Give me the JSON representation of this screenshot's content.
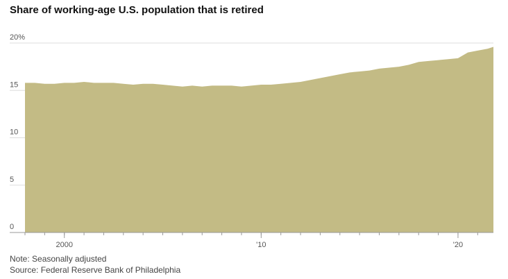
{
  "title": "Share of working-age U.S. population that is retired",
  "note": "Note: Seasonally adjusted",
  "source": "Source: Federal Reserve Bank of Philadelphia",
  "colors": {
    "area": "#c3bb85",
    "grid": "#dddddd",
    "axis": "#999999",
    "text": "#555555"
  },
  "chart_data": {
    "type": "area",
    "title": "Share of working-age U.S. population that is retired",
    "xlabel": "",
    "ylabel": "",
    "ylim": [
      0,
      20
    ],
    "yticks": [
      {
        "value": 20,
        "label": "20%"
      },
      {
        "value": 15,
        "label": "15"
      },
      {
        "value": 10,
        "label": "10"
      },
      {
        "value": 5,
        "label": "5"
      },
      {
        "value": 0,
        "label": "0"
      }
    ],
    "xlim": [
      1998.0,
      2021.8
    ],
    "xticks": [
      {
        "value": 2000,
        "label": "2000"
      },
      {
        "value": 2010,
        "label": "'10"
      },
      {
        "value": 2020,
        "label": "'20"
      }
    ],
    "grid": true,
    "series": [
      {
        "x": [
          1998.0,
          1998.5,
          1999.0,
          1999.5,
          2000.0,
          2000.5,
          2001.0,
          2001.5,
          2002.0,
          2002.5,
          2003.0,
          2003.5,
          2004.0,
          2004.5,
          2005.0,
          2005.5,
          2006.0,
          2006.5,
          2007.0,
          2007.5,
          2008.0,
          2008.5,
          2009.0,
          2009.5,
          2010.0,
          2010.5,
          2011.0,
          2011.5,
          2012.0,
          2012.5,
          2013.0,
          2013.5,
          2014.0,
          2014.5,
          2015.0,
          2015.5,
          2016.0,
          2016.5,
          2017.0,
          2017.5,
          2018.0,
          2018.5,
          2019.0,
          2019.5,
          2020.0,
          2020.5,
          2021.0,
          2021.5,
          2021.8
        ],
        "values": [
          15.8,
          15.8,
          15.7,
          15.7,
          15.8,
          15.8,
          15.9,
          15.8,
          15.8,
          15.8,
          15.7,
          15.6,
          15.7,
          15.7,
          15.6,
          15.5,
          15.4,
          15.5,
          15.4,
          15.5,
          15.5,
          15.5,
          15.4,
          15.5,
          15.6,
          15.6,
          15.7,
          15.8,
          15.9,
          16.1,
          16.3,
          16.5,
          16.7,
          16.9,
          17.0,
          17.1,
          17.3,
          17.4,
          17.5,
          17.7,
          18.0,
          18.1,
          18.2,
          18.3,
          18.4,
          19.0,
          19.2,
          19.4,
          19.6
        ]
      }
    ]
  }
}
